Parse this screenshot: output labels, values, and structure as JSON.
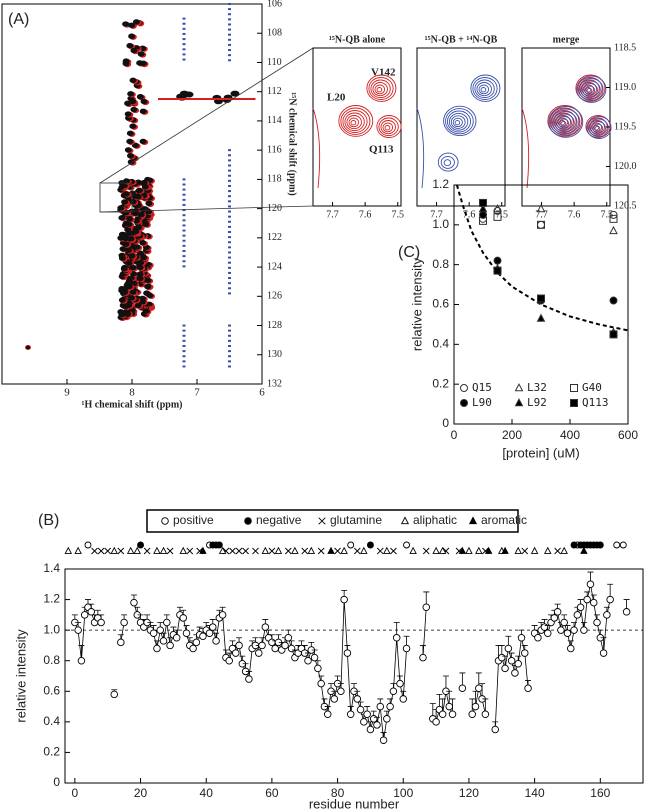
{
  "chart_data": [
    {
      "type": "spectrum",
      "panel": "(A)",
      "xlabel": "¹H chemical shift (ppm)",
      "ylabel": "¹⁵N chemical shift (ppm)",
      "xlim": [
        10,
        6
      ],
      "xticks": [
        9,
        8,
        7,
        6
      ],
      "ylim": [
        106,
        132
      ],
      "yticks": [
        106,
        108,
        110,
        112,
        114,
        116,
        118,
        120,
        122,
        124,
        126,
        128,
        130,
        132
      ]
    },
    {
      "type": "inset",
      "title": "¹⁵N-QB alone",
      "xlim": [
        7.76,
        7.49
      ],
      "xticks": [
        7.7,
        7.6,
        7.5
      ],
      "ylim": [
        118.5,
        120.5
      ],
      "annotations": [
        "V142",
        "L20",
        "Q113"
      ],
      "colors": [
        "#d42020"
      ]
    },
    {
      "type": "inset",
      "title": "¹⁵N-QB + ¹⁴N-QB",
      "xlim": [
        7.76,
        7.49
      ],
      "xticks": [
        7.7,
        7.6,
        7.5
      ],
      "ylim": [
        118.5,
        120.5
      ],
      "colors": [
        "#3a4fa8"
      ]
    },
    {
      "type": "inset",
      "title": "merge",
      "xlim": [
        7.76,
        7.49
      ],
      "xticks": [
        7.7,
        7.6,
        7.5
      ],
      "ylim": [
        118.5,
        120.5
      ],
      "yticks": [
        118.5,
        {
          "value": 119,
          "label": "119.0"
        },
        119.5,
        {
          "value": 120,
          "label": "120.0"
        },
        120.5
      ],
      "colors": [
        "#d42020",
        "#3a4fa8"
      ]
    },
    {
      "type": "scatter",
      "panel": "(C)",
      "xlabel": "[protein] (uM)",
      "ylabel": "relative intensity",
      "xlim": [
        0,
        600
      ],
      "xticks": [
        0,
        200,
        400,
        600
      ],
      "ylim": [
        0,
        1.2
      ],
      "yticks": [
        0,
        0.2,
        0.4,
        0.6,
        0.8,
        {
          "value": 1,
          "label": "1.0"
        },
        1.2
      ],
      "x": [
        100,
        150,
        300,
        550
      ],
      "series": [
        {
          "name": "Q15",
          "marker": "circle-open",
          "values": [
            1.03,
            1.07,
            1.0,
            1.05
          ]
        },
        {
          "name": "L32",
          "marker": "triangle-open",
          "values": [
            1.05,
            1.08,
            1.08,
            0.97
          ]
        },
        {
          "name": "G40",
          "marker": "square-open",
          "values": [
            1.02,
            1.04,
            1.0,
            1.03
          ]
        },
        {
          "name": "L90",
          "marker": "circle-filled",
          "values": [
            1.05,
            0.82,
            0.62,
            0.62
          ]
        },
        {
          "name": "L92",
          "marker": "triangle-filled",
          "values": [
            1.08,
            0.78,
            0.53,
            0.46
          ]
        },
        {
          "name": "Q113",
          "marker": "square-filled",
          "values": [
            1.11,
            0.77,
            0.63,
            0.45
          ]
        }
      ],
      "fit": {
        "x": [
          10,
          30,
          60,
          100,
          150,
          200,
          300,
          400,
          500,
          600
        ],
        "values": [
          1.2,
          1.1,
          0.97,
          0.86,
          0.76,
          0.69,
          0.6,
          0.54,
          0.5,
          0.47
        ]
      }
    },
    {
      "type": "line",
      "panel": "(B)",
      "xlabel": "residue number",
      "ylabel": "relative intensity",
      "xlim": [
        -3,
        173
      ],
      "xticks": [
        0,
        20,
        40,
        60,
        80,
        100,
        120,
        140,
        160
      ],
      "ylim": [
        0,
        1.4
      ],
      "yticks": [
        0,
        0.2,
        0.4,
        0.6,
        0.8,
        {
          "value": 1,
          "label": "1.0"
        },
        1.2,
        1.4
      ],
      "reference": 1,
      "x": [
        0,
        1,
        2,
        3,
        4,
        5,
        6,
        7,
        8,
        9,
        12,
        13,
        14,
        15,
        16,
        18,
        19,
        20,
        21,
        22,
        23,
        24,
        25,
        26,
        27,
        28,
        29,
        30,
        31,
        32,
        33,
        34,
        35,
        36,
        37,
        38,
        39,
        40,
        41,
        42,
        43,
        44,
        45,
        46,
        47,
        48,
        49,
        50,
        51,
        52,
        53,
        54,
        55,
        56,
        57,
        58,
        59,
        60,
        61,
        62,
        63,
        64,
        65,
        66,
        67,
        68,
        69,
        70,
        71,
        72,
        73,
        74,
        75,
        76,
        77,
        78,
        79,
        80,
        81,
        82,
        83,
        84,
        85,
        86,
        87,
        88,
        89,
        90,
        91,
        92,
        93,
        94,
        95,
        96,
        97,
        98,
        99,
        100,
        101,
        102,
        106,
        107,
        108,
        109,
        110,
        111,
        112,
        113,
        114,
        115,
        116,
        118,
        119,
        121,
        122,
        123,
        124,
        125,
        126,
        128,
        129,
        130,
        131,
        132,
        133,
        134,
        135,
        136,
        137,
        138,
        139,
        140,
        141,
        142,
        143,
        144,
        145,
        146,
        147,
        148,
        149,
        150,
        151,
        152,
        153,
        154,
        155,
        156,
        157,
        158,
        159,
        160,
        161,
        162,
        163,
        164,
        168
      ],
      "values": [
        1.05,
        1.0,
        0.8,
        1.1,
        1.15,
        1.12,
        1.05,
        1.08,
        1.05,
        null,
        0.58,
        null,
        0.92,
        1.05,
        null,
        1.18,
        1.1,
        1.05,
        1.02,
        1.05,
        1.0,
        0.98,
        0.88,
        1.0,
        0.93,
        1.05,
        0.9,
        0.97,
        0.95,
        1.1,
        1.08,
        0.98,
        0.9,
        0.88,
        0.92,
        0.97,
        0.96,
        1.0,
        0.98,
        1.02,
        0.93,
        1.08,
        1.1,
        0.82,
        0.8,
        0.88,
        0.85,
        0.9,
        0.78,
        0.73,
        0.68,
        0.88,
        0.9,
        0.85,
        0.9,
        1.02,
        0.95,
        0.92,
        0.88,
        0.92,
        0.87,
        0.9,
        0.95,
        0.88,
        0.82,
        0.85,
        0.88,
        0.85,
        0.8,
        0.87,
        0.82,
        0.75,
        0.65,
        0.5,
        0.45,
        0.6,
        0.55,
        0.65,
        0.6,
        1.2,
        0.85,
        0.45,
        0.6,
        0.55,
        0.48,
        0.4,
        0.45,
        0.35,
        0.42,
        0.38,
        0.5,
        0.28,
        0.42,
        0.5,
        0.6,
        0.95,
        0.65,
        0.55,
        0.88,
        null,
        0.82,
        1.15,
        null,
        0.42,
        0.4,
        0.48,
        0.45,
        0.6,
        0.5,
        0.45,
        null,
        0.62,
        null,
        0.45,
        0.5,
        0.62,
        0.55,
        0.45,
        null,
        0.35,
        0.8,
        0.82,
        0.75,
        0.88,
        0.8,
        0.72,
        0.78,
        0.95,
        0.85,
        0.62,
        null,
        0.98,
        0.95,
        1.0,
        1.02,
        0.98,
        1.05,
        1.08,
        1.12,
        1.0,
        1.05,
        0.98,
        0.88,
        1.0,
        1.1,
        1.15,
        1.0,
        1.2,
        1.3,
        1.18,
        1.05,
        0.95,
        0.85,
        1.1,
        1.2,
        null,
        1.12
      ],
      "errors": [
        0.05,
        0.05,
        0.1,
        0.05,
        0.05,
        0.05,
        0.05,
        0.05,
        0.05,
        null,
        0.03,
        null,
        0.05,
        0.05,
        null,
        0.05,
        0.05,
        0.05,
        0.05,
        0.05,
        0.05,
        0.05,
        0.05,
        0.05,
        0.05,
        0.05,
        0.05,
        0.05,
        0.05,
        0.05,
        0.05,
        0.05,
        0.05,
        0.05,
        0.05,
        0.05,
        0.05,
        0.05,
        0.05,
        0.05,
        0.05,
        0.05,
        0.05,
        0.05,
        0.05,
        0.05,
        0.05,
        0.05,
        0.05,
        0.05,
        0.05,
        0.05,
        0.05,
        0.05,
        0.05,
        0.05,
        0.05,
        0.05,
        0.05,
        0.05,
        0.05,
        0.05,
        0.05,
        0.05,
        0.05,
        0.05,
        0.05,
        0.05,
        0.05,
        0.05,
        0.05,
        0.05,
        0.05,
        0.05,
        0.05,
        0.05,
        0.05,
        0.05,
        0.05,
        0.06,
        0.05,
        0.05,
        0.05,
        0.05,
        0.05,
        0.05,
        0.05,
        0.05,
        0.05,
        0.05,
        0.05,
        0.05,
        0.05,
        0.05,
        0.05,
        0.1,
        0.05,
        0.05,
        0.08,
        null,
        0.08,
        0.1,
        null,
        0.1,
        0.08,
        0.1,
        0.1,
        0.1,
        0.1,
        0.1,
        null,
        0.1,
        null,
        0.1,
        0.1,
        0.1,
        0.1,
        0.1,
        null,
        0.05,
        0.1,
        0.08,
        0.08,
        0.08,
        0.05,
        0.05,
        0.05,
        0.05,
        0.05,
        0.05,
        null,
        0.05,
        0.05,
        0.05,
        0.05,
        0.05,
        0.05,
        0.05,
        0.05,
        0.05,
        0.05,
        0.05,
        0.05,
        0.05,
        0.05,
        0.05,
        0.05,
        0.05,
        0.08,
        0.05,
        0.05,
        0.05,
        0.1,
        0.05,
        0.1,
        null,
        0.08
      ],
      "residue_classes": [
        {
          "name": "positive",
          "marker": "circle-open",
          "positions": [
            4,
            41,
            84,
            101,
            153,
            165,
            167
          ]
        },
        {
          "name": "negative",
          "marker": "circle-filled",
          "positions": [
            20,
            42,
            43,
            44,
            90,
            152,
            154,
            155,
            156,
            157,
            158,
            159,
            160
          ]
        },
        {
          "name": "glutamine",
          "marker": "x",
          "positions": [
            6,
            8,
            10,
            14,
            22,
            29,
            35,
            38,
            46,
            48,
            50,
            52,
            55,
            60,
            65,
            70,
            75,
            80,
            86,
            93,
            97,
            107,
            113,
            117,
            125,
            137,
            147
          ]
        },
        {
          "name": "aliphatic",
          "marker": "triangle-open",
          "positions": [
            -2,
            1,
            12,
            17,
            19,
            25,
            27,
            33,
            45,
            58,
            62,
            67,
            72,
            82,
            88,
            95,
            103,
            110,
            112,
            120,
            123,
            130,
            135,
            140,
            144,
            149
          ]
        },
        {
          "name": "aromatic",
          "marker": "triangle-filled",
          "positions": [
            39,
            78,
            118,
            126,
            131,
            155
          ]
        }
      ]
    }
  ]
}
